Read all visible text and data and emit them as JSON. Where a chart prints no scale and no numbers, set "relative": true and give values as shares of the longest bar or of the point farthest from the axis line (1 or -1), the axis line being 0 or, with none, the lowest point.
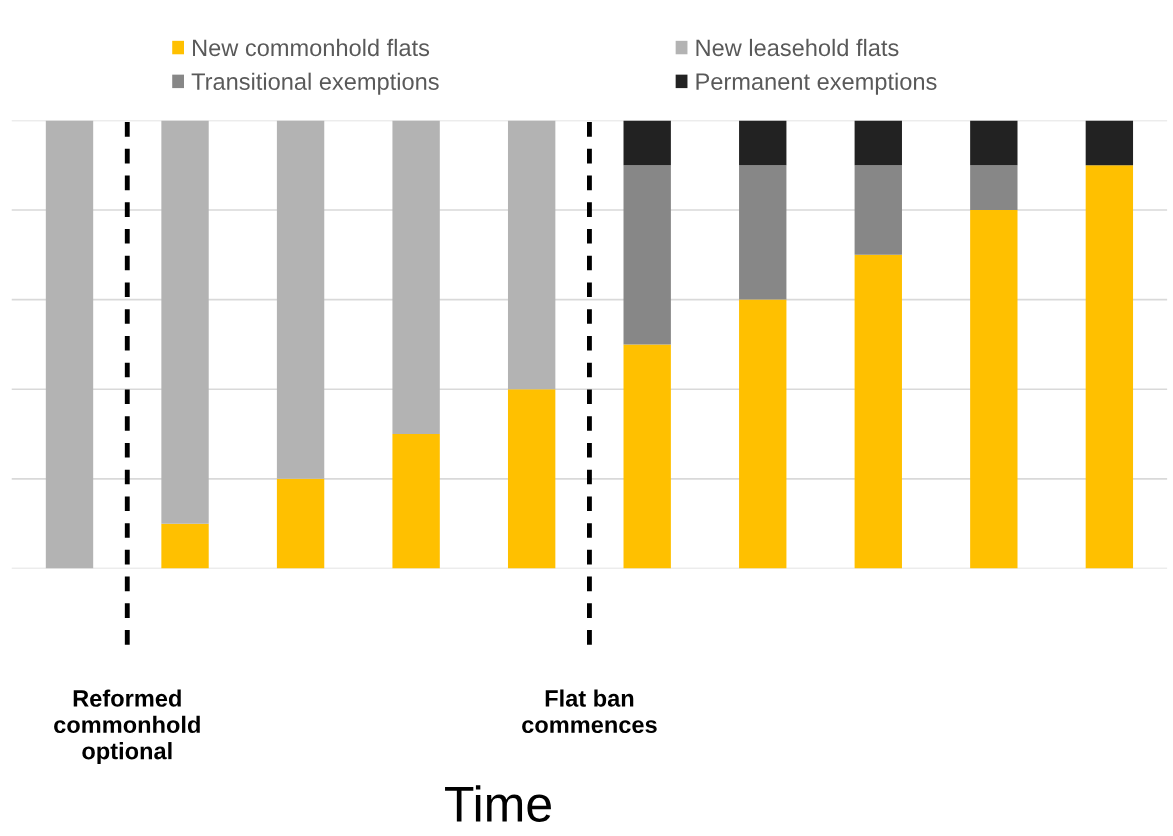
{
  "chart_data": {
    "type": "bar",
    "stacked": true,
    "relative": true,
    "xlabel": "Time",
    "categories": [
      null,
      null,
      null,
      null,
      null,
      null,
      null,
      null,
      null,
      null
    ],
    "series": [
      {
        "name": "New commonhold flats",
        "color": "#ffc000",
        "values": [
          0,
          0.1,
          0.2,
          0.3,
          0.4,
          0.5,
          0.6,
          0.7,
          0.8,
          0.9
        ]
      },
      {
        "name": "New leasehold flats",
        "color": "#b3b3b3",
        "values": [
          1,
          0.9,
          0.8,
          0.7,
          0.6,
          0,
          0,
          0,
          0,
          0
        ]
      },
      {
        "name": "Transitional exemptions",
        "color": "#878787",
        "values": [
          0,
          0,
          0,
          0,
          0,
          0.4,
          0.3,
          0.2,
          0.1,
          0
        ]
      },
      {
        "name": "Permanent exemptions",
        "color": "#222222",
        "values": [
          0,
          0,
          0,
          0,
          0,
          0.1,
          0.1,
          0.1,
          0.1,
          0.1
        ]
      }
    ],
    "annotations": [
      "Reformed\ncommonhold\noptional",
      "Flat ban\ncommences"
    ],
    "grid": "y",
    "legend": "top",
    "tick_labels": false
  }
}
